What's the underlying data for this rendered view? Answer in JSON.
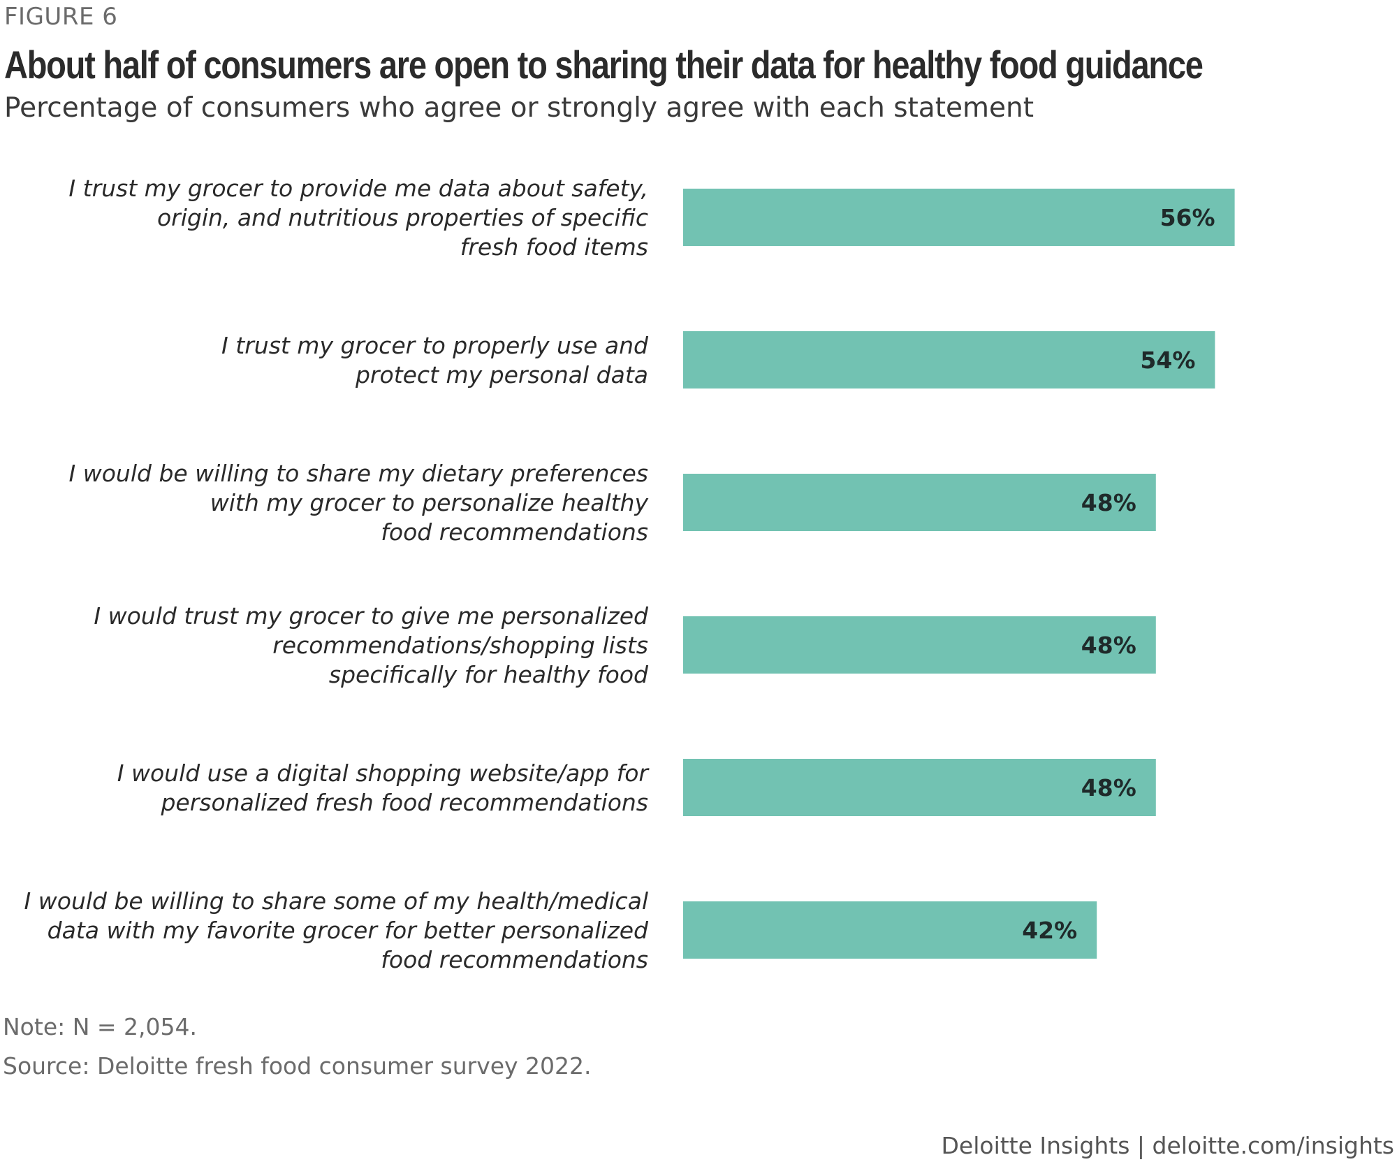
{
  "figure_label": "FIGURE 6",
  "title": "About half of consumers are open to sharing their data for healthy food guidance",
  "subtitle": "Percentage of consumers who agree or strongly agree with each statement",
  "note": "Note: N = 2,054.",
  "source": "Source: Deloitte fresh food consumer survey 2022.",
  "credit": "Deloitte Insights | deloitte.com/insights",
  "colors": {
    "bar": "#72C2B2"
  },
  "chart_data": {
    "type": "bar",
    "orientation": "horizontal",
    "title": "About half of consumers are open to sharing their data for healthy food guidance",
    "xlabel": "",
    "ylabel": "",
    "xlim": [
      0,
      100
    ],
    "grid": false,
    "categories": [
      [
        "I trust my grocer to provide me data about safety,",
        "origin, and nutritious properties of specific",
        "fresh food items"
      ],
      [
        "I trust my grocer to properly use and",
        "protect my personal data"
      ],
      [
        "I would be willing to share my dietary preferences",
        "with my grocer to personalize healthy",
        "food recommendations"
      ],
      [
        "I would trust my grocer to give me personalized",
        "recommendations/shopping lists",
        "specifically for healthy food"
      ],
      [
        "I would use a digital shopping website/app for",
        "personalized fresh food recommendations"
      ],
      [
        "I would be willing to share some of my health/medical",
        "data with my favorite grocer for better personalized",
        "food recommendations"
      ]
    ],
    "values": [
      56,
      54,
      48,
      48,
      48,
      42
    ],
    "value_labels": [
      "56%",
      "54%",
      "48%",
      "48%",
      "48%",
      "42%"
    ]
  }
}
